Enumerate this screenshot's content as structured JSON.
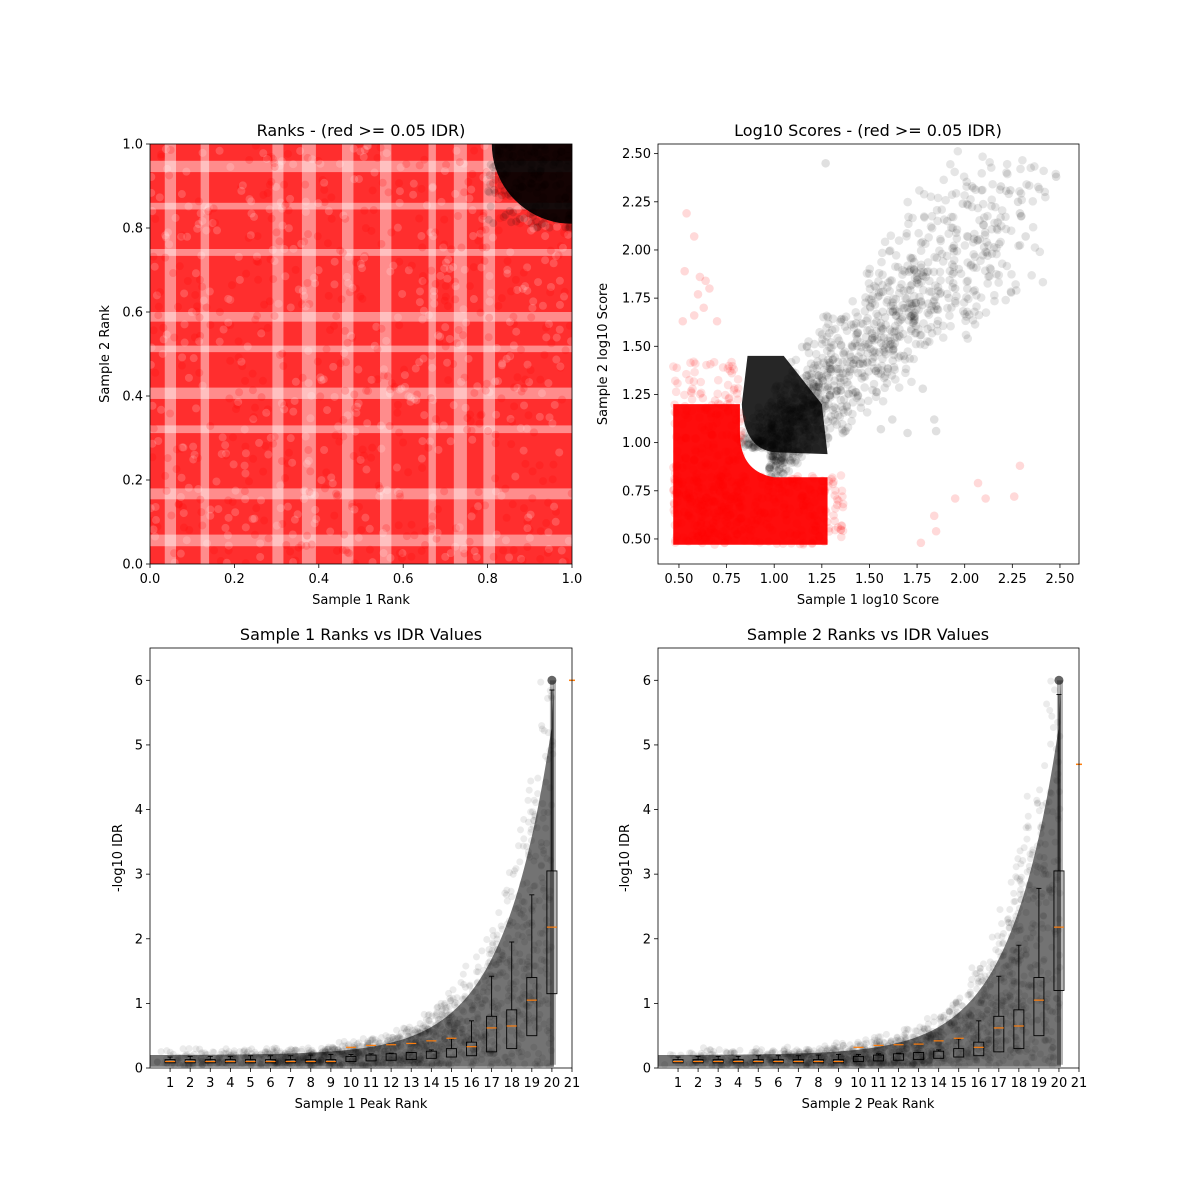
{
  "chart_data": [
    {
      "id": "ranks",
      "type": "scatter",
      "title": "Ranks - (red >= 0.05 IDR)",
      "xlabel": "Sample 1 Rank",
      "ylabel": "Sample 2 Rank",
      "xlim": [
        0.0,
        1.0
      ],
      "ylim": [
        0.0,
        1.0
      ],
      "xticks": [
        "0.0",
        "0.2",
        "0.4",
        "0.6",
        "0.8",
        "1.0"
      ],
      "yticks": [
        "0.0",
        "0.2",
        "0.4",
        "0.6",
        "0.8",
        "1.0"
      ],
      "colors": {
        "pass": "#000000",
        "fail": "#ff0000"
      },
      "series": [
        {
          "color": "red",
          "description_idr": ">= 0.05",
          "region": "full unit square except top-right corner",
          "x_range": [
            0.0,
            1.0
          ],
          "y_range": [
            0.0,
            1.0
          ]
        },
        {
          "color": "black",
          "description_idr": "< 0.05",
          "region": "top-right corner",
          "x_range": [
            0.82,
            1.0
          ],
          "y_range": [
            0.82,
            1.0
          ]
        }
      ]
    },
    {
      "id": "scores",
      "type": "scatter",
      "title": "Log10 Scores - (red >= 0.05 IDR)",
      "xlabel": "Sample 1 log10 Score",
      "ylabel": "Sample 2 log10 Score",
      "xlim": [
        0.39,
        2.6
      ],
      "ylim": [
        0.37,
        2.55
      ],
      "xticks": [
        "0.50",
        "0.75",
        "1.00",
        "1.25",
        "1.50",
        "1.75",
        "2.00",
        "2.25",
        "2.50"
      ],
      "yticks": [
        "0.50",
        "0.75",
        "1.00",
        "1.25",
        "1.50",
        "1.75",
        "2.00",
        "2.25",
        "2.50"
      ],
      "colors": {
        "pass": "#000000",
        "fail": "#ff0000"
      },
      "outliers_red": [
        [
          0.54,
          2.19
        ],
        [
          0.58,
          2.07
        ],
        [
          0.53,
          1.89
        ],
        [
          0.61,
          1.86
        ],
        [
          0.64,
          1.84
        ],
        [
          0.66,
          1.8
        ],
        [
          0.6,
          1.77
        ],
        [
          0.63,
          1.7
        ],
        [
          0.58,
          1.66
        ],
        [
          0.52,
          1.63
        ],
        [
          0.7,
          1.63
        ],
        [
          1.95,
          0.71
        ],
        [
          2.07,
          0.79
        ],
        [
          2.11,
          0.71
        ],
        [
          2.26,
          0.72
        ],
        [
          2.29,
          0.88
        ],
        [
          1.84,
          0.62
        ],
        [
          1.85,
          0.54
        ],
        [
          1.77,
          0.48
        ]
      ],
      "outliers_black": [
        [
          1.27,
          2.45
        ],
        [
          2.48,
          2.38
        ],
        [
          2.19,
          2.33
        ],
        [
          2.24,
          2.31
        ],
        [
          2.28,
          2.25
        ],
        [
          2.29,
          2.19
        ],
        [
          2.32,
          2.07
        ],
        [
          2.11,
          1.99
        ],
        [
          1.99,
          2.24
        ],
        [
          1.85,
          1.71
        ],
        [
          1.86,
          1.69
        ],
        [
          1.95,
          1.8
        ],
        [
          1.68,
          1.45
        ],
        [
          1.78,
          1.28
        ],
        [
          1.84,
          1.12
        ],
        [
          1.85,
          1.06
        ],
        [
          1.7,
          1.05
        ],
        [
          1.56,
          1.07
        ],
        [
          1.62,
          1.12
        ]
      ]
    },
    {
      "id": "s1_idr",
      "type": "scatter",
      "title": "Sample 1 Ranks vs IDR Values",
      "xlabel": "Sample 1 Peak Rank",
      "ylabel": "-log10 IDR",
      "xlim": [
        0,
        21
      ],
      "ylim": [
        0,
        6.5
      ],
      "xticks": [
        "1",
        "2",
        "3",
        "4",
        "5",
        "6",
        "7",
        "8",
        "9",
        "10",
        "11",
        "12",
        "13",
        "14",
        "15",
        "16",
        "17",
        "18",
        "19",
        "20",
        "21"
      ],
      "yticks": [
        "0",
        "1",
        "2",
        "3",
        "4",
        "5",
        "6"
      ],
      "box_medians": [
        0.1,
        0.1,
        0.1,
        0.1,
        0.1,
        0.1,
        0.1,
        0.1,
        0.1,
        0.32,
        0.35,
        0.36,
        0.38,
        0.42,
        0.46,
        0.33,
        0.62,
        0.65,
        1.05,
        2.18
      ],
      "box_whisker_top": [
        0.17,
        0.18,
        0.18,
        0.18,
        0.19,
        0.19,
        0.19,
        0.2,
        0.21,
        0.21,
        0.22,
        0.23,
        0.24,
        0.28,
        0.45,
        0.73,
        1.42,
        1.95,
        2.68,
        5.85
      ],
      "box_q3": [
        0.13,
        0.13,
        0.13,
        0.13,
        0.13,
        0.13,
        0.13,
        0.13,
        0.13,
        0.18,
        0.2,
        0.22,
        0.24,
        0.26,
        0.3,
        0.4,
        0.8,
        0.9,
        1.4,
        3.05
      ],
      "box_q1": [
        0.08,
        0.08,
        0.08,
        0.08,
        0.08,
        0.08,
        0.08,
        0.08,
        0.08,
        0.1,
        0.11,
        0.12,
        0.13,
        0.15,
        0.17,
        0.19,
        0.25,
        0.3,
        0.5,
        1.15
      ],
      "top_value": 6.0,
      "extra_median": [
        21,
        6.0
      ]
    },
    {
      "id": "s2_idr",
      "type": "scatter",
      "title": "Sample 2 Ranks vs IDR Values",
      "xlabel": "Sample 2 Peak Rank",
      "ylabel": "-log10 IDR",
      "xlim": [
        0,
        21
      ],
      "ylim": [
        0,
        6.5
      ],
      "xticks": [
        "1",
        "2",
        "3",
        "4",
        "5",
        "6",
        "7",
        "8",
        "9",
        "10",
        "11",
        "12",
        "13",
        "14",
        "15",
        "16",
        "17",
        "18",
        "19",
        "20",
        "21"
      ],
      "yticks": [
        "0",
        "1",
        "2",
        "3",
        "4",
        "5",
        "6"
      ],
      "box_medians": [
        0.1,
        0.1,
        0.1,
        0.1,
        0.1,
        0.1,
        0.1,
        0.1,
        0.1,
        0.32,
        0.35,
        0.36,
        0.37,
        0.42,
        0.46,
        0.32,
        0.62,
        0.65,
        1.05,
        2.18
      ],
      "box_whisker_top": [
        0.17,
        0.18,
        0.18,
        0.18,
        0.19,
        0.19,
        0.19,
        0.2,
        0.21,
        0.21,
        0.22,
        0.23,
        0.24,
        0.28,
        0.45,
        0.73,
        1.42,
        1.9,
        2.78,
        5.78
      ],
      "box_q3": [
        0.13,
        0.13,
        0.13,
        0.13,
        0.13,
        0.13,
        0.13,
        0.13,
        0.13,
        0.18,
        0.2,
        0.22,
        0.24,
        0.26,
        0.3,
        0.4,
        0.8,
        0.9,
        1.4,
        3.05
      ],
      "box_q1": [
        0.08,
        0.08,
        0.08,
        0.08,
        0.08,
        0.08,
        0.08,
        0.08,
        0.08,
        0.1,
        0.11,
        0.12,
        0.13,
        0.15,
        0.17,
        0.19,
        0.25,
        0.3,
        0.5,
        1.2
      ],
      "top_value": 6.0,
      "extra_median": [
        21,
        4.7
      ]
    }
  ]
}
